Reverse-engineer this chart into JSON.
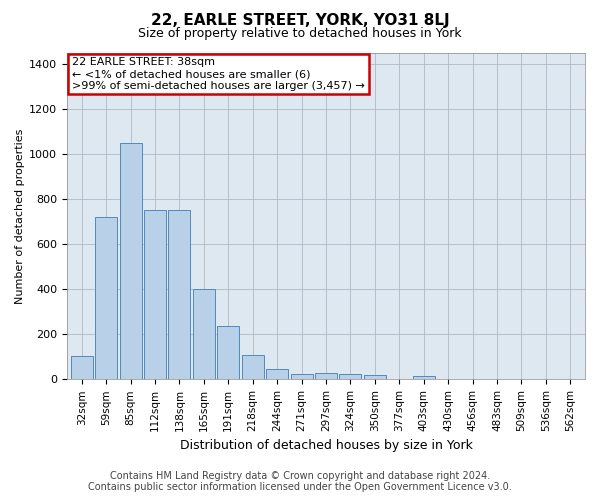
{
  "title": "22, EARLE STREET, YORK, YO31 8LJ",
  "subtitle": "Size of property relative to detached houses in York",
  "xlabel": "Distribution of detached houses by size in York",
  "ylabel": "Number of detached properties",
  "footer_line1": "Contains HM Land Registry data © Crown copyright and database right 2024.",
  "footer_line2": "Contains public sector information licensed under the Open Government Licence v3.0.",
  "annotation_line1": "22 EARLE STREET: 38sqm",
  "annotation_line2": "← <1% of detached houses are smaller (6)",
  "annotation_line3": ">99% of semi-detached houses are larger (3,457) →",
  "bar_color": "#b8d0e8",
  "bar_edge_color": "#5588bb",
  "highlight_bar_color": "#b8d0e8",
  "highlight_bar_edge_color": "#cc0000",
  "annotation_box_facecolor": "#ffffff",
  "annotation_box_edgecolor": "#cc0000",
  "background_color": "#ffffff",
  "plot_bg_color": "#dde8f0",
  "grid_color": "#b0b8c8",
  "categories": [
    "32sqm",
    "59sqm",
    "85sqm",
    "112sqm",
    "138sqm",
    "165sqm",
    "191sqm",
    "218sqm",
    "244sqm",
    "271sqm",
    "297sqm",
    "324sqm",
    "350sqm",
    "377sqm",
    "403sqm",
    "430sqm",
    "456sqm",
    "483sqm",
    "509sqm",
    "536sqm",
    "562sqm"
  ],
  "values": [
    105,
    720,
    1050,
    750,
    750,
    400,
    235,
    110,
    45,
    25,
    30,
    25,
    20,
    0,
    15,
    0,
    0,
    0,
    0,
    0,
    0
  ],
  "highlight_index": 0,
  "ylim": [
    0,
    1450
  ],
  "yticks": [
    0,
    200,
    400,
    600,
    800,
    1000,
    1200,
    1400
  ],
  "title_fontsize": 11,
  "subtitle_fontsize": 9,
  "ylabel_fontsize": 8,
  "xlabel_fontsize": 9,
  "tick_fontsize": 8,
  "xtick_fontsize": 7.5,
  "footer_fontsize": 7
}
